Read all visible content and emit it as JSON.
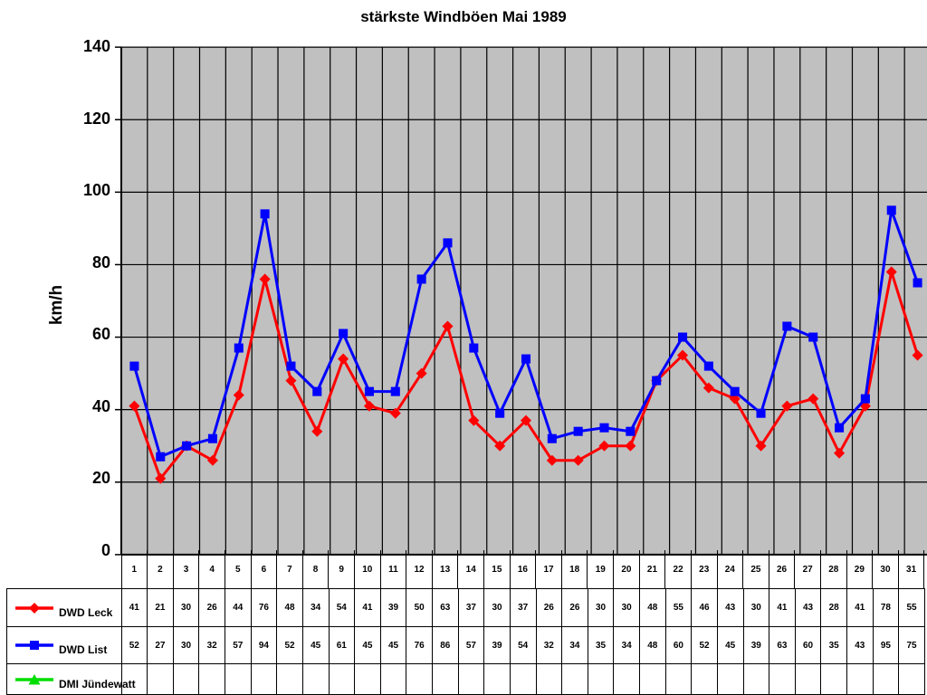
{
  "chart_data": {
    "type": "line",
    "title": "stärkste Windböen Mai 1989",
    "ylabel": "km/h",
    "ylim": [
      0,
      140
    ],
    "y_ticks": [
      0,
      20,
      40,
      60,
      80,
      100,
      120,
      140
    ],
    "grid": true,
    "plot_background": "#C0C0C0",
    "grid_color": "#000000",
    "legend_position": "bottom-left-table",
    "categories": [
      1,
      2,
      3,
      4,
      5,
      6,
      7,
      8,
      9,
      10,
      11,
      12,
      13,
      14,
      15,
      16,
      17,
      18,
      19,
      20,
      21,
      22,
      23,
      24,
      25,
      26,
      27,
      28,
      29,
      30,
      31
    ],
    "series": [
      {
        "name": "DWD Leck",
        "color": "#FF0000",
        "marker": "diamond",
        "values": [
          41,
          21,
          30,
          26,
          44,
          76,
          48,
          34,
          54,
          41,
          39,
          50,
          63,
          37,
          30,
          37,
          26,
          26,
          30,
          30,
          48,
          55,
          46,
          43,
          30,
          41,
          43,
          28,
          41,
          78,
          55
        ]
      },
      {
        "name": "DWD List",
        "color": "#0000FF",
        "marker": "square",
        "values": [
          52,
          27,
          30,
          32,
          57,
          94,
          52,
          45,
          61,
          45,
          45,
          76,
          86,
          57,
          39,
          54,
          32,
          34,
          35,
          34,
          48,
          60,
          52,
          45,
          39,
          63,
          60,
          35,
          43,
          95,
          75
        ]
      },
      {
        "name": "DMI Jündewatt",
        "color": "#00DD00",
        "marker": "triangle",
        "values": []
      }
    ]
  }
}
